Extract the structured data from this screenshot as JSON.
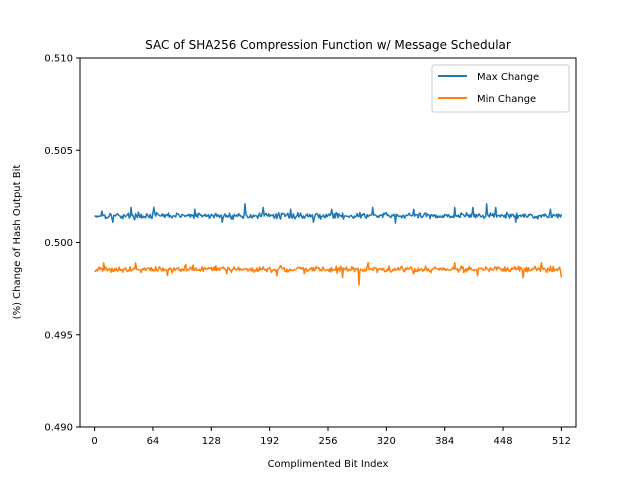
{
  "chart_data": {
    "type": "line",
    "title": "SAC of SHA256 Compression Function w/ Message Schedular",
    "xlabel": "Complimented Bit Index",
    "ylabel": "(%) Change of Hash Output Bit",
    "xlim": [
      -16,
      528
    ],
    "ylim": [
      0.49,
      0.51
    ],
    "xticks": [
      0,
      64,
      128,
      192,
      256,
      320,
      384,
      448,
      512
    ],
    "xtick_labels": [
      "0",
      "64",
      "128",
      "192",
      "256",
      "320",
      "384",
      "448",
      "512"
    ],
    "yticks": [
      0.49,
      0.495,
      0.5,
      0.505,
      0.51
    ],
    "ytick_labels": [
      "0.490",
      "0.495",
      "0.500",
      "0.505",
      "0.510"
    ],
    "grid": false,
    "legend": "top-right",
    "x": {
      "start": 0,
      "end": 512,
      "count": 513
    },
    "series": [
      {
        "name": "Max Change",
        "color": "#1f77b4",
        "mean": 0.50145,
        "spread": 0.00024,
        "seed": 17,
        "spikes": [
          [
            8,
            0.5017
          ],
          [
            40,
            0.5019
          ],
          [
            65,
            0.5019
          ],
          [
            110,
            0.5018
          ],
          [
            165,
            0.5021
          ],
          [
            185,
            0.5019
          ],
          [
            215,
            0.5018
          ],
          [
            260,
            0.5018
          ],
          [
            305,
            0.5019
          ],
          [
            350,
            0.5018
          ],
          [
            395,
            0.5019
          ],
          [
            415,
            0.5019
          ],
          [
            430,
            0.5021
          ],
          [
            440,
            0.5019
          ],
          [
            500,
            0.5018
          ],
          [
            20,
            0.5011
          ],
          [
            140,
            0.5011
          ],
          [
            240,
            0.5011
          ],
          [
            330,
            0.50105
          ],
          [
            462,
            0.5011
          ]
        ]
      },
      {
        "name": "Min Change",
        "color": "#ff7f0e",
        "mean": 0.49855,
        "spread": 0.00024,
        "seed": 91,
        "spikes": [
          [
            10,
            0.4989
          ],
          [
            80,
            0.4982
          ],
          [
            100,
            0.4988
          ],
          [
            145,
            0.4983
          ],
          [
            200,
            0.4982
          ],
          [
            230,
            0.4983
          ],
          [
            272,
            0.4981
          ],
          [
            290,
            0.4977
          ],
          [
            300,
            0.4989
          ],
          [
            350,
            0.4983
          ],
          [
            395,
            0.4989
          ],
          [
            420,
            0.4982
          ],
          [
            470,
            0.4981
          ],
          [
            490,
            0.4989
          ],
          [
            512,
            0.4981
          ],
          [
            45,
            0.4989
          ]
        ]
      }
    ]
  }
}
